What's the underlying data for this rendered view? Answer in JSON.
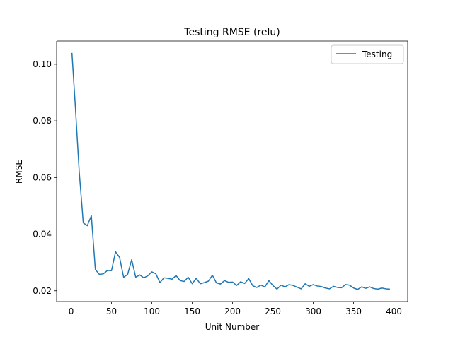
{
  "chart_data": {
    "type": "line",
    "title": "Testing RMSE (relu)",
    "xlabel": "Unit Number",
    "ylabel": "RMSE",
    "xlim": [
      -18,
      417
    ],
    "ylim": [
      0.0162,
      0.1082
    ],
    "xticks": [
      0,
      50,
      100,
      150,
      200,
      250,
      300,
      350,
      400
    ],
    "yticks": [
      0.02,
      0.04,
      0.06,
      0.08,
      0.1
    ],
    "ytick_labels": [
      "0.02",
      "0.04",
      "0.06",
      "0.08",
      "0.10"
    ],
    "grid": false,
    "legend_position": "top-right",
    "series": [
      {
        "name": "Testing",
        "color": "#1f77b4",
        "x": [
          1,
          5,
          10,
          15,
          20,
          25,
          30,
          35,
          40,
          45,
          50,
          55,
          60,
          65,
          70,
          75,
          80,
          85,
          90,
          95,
          100,
          105,
          110,
          115,
          120,
          125,
          130,
          135,
          140,
          145,
          150,
          155,
          160,
          165,
          170,
          175,
          180,
          185,
          190,
          195,
          200,
          205,
          210,
          215,
          220,
          225,
          230,
          235,
          240,
          245,
          250,
          255,
          260,
          265,
          270,
          275,
          280,
          285,
          290,
          295,
          300,
          305,
          310,
          315,
          320,
          325,
          330,
          335,
          340,
          345,
          350,
          355,
          360,
          365,
          370,
          375,
          380,
          385,
          390,
          395
        ],
        "y": [
          0.104,
          0.086,
          0.062,
          0.044,
          0.043,
          0.0465,
          0.0275,
          0.0258,
          0.026,
          0.0272,
          0.0271,
          0.0338,
          0.0318,
          0.0248,
          0.0258,
          0.031,
          0.0248,
          0.0256,
          0.0246,
          0.0253,
          0.0267,
          0.026,
          0.0229,
          0.0246,
          0.0244,
          0.0241,
          0.0254,
          0.0236,
          0.0233,
          0.0248,
          0.0225,
          0.0244,
          0.0225,
          0.0229,
          0.0234,
          0.0255,
          0.0228,
          0.0224,
          0.0236,
          0.023,
          0.0231,
          0.0219,
          0.0232,
          0.0226,
          0.0243,
          0.0218,
          0.0212,
          0.022,
          0.0214,
          0.0236,
          0.0219,
          0.0206,
          0.022,
          0.0214,
          0.0222,
          0.0219,
          0.0213,
          0.0207,
          0.0225,
          0.0216,
          0.0222,
          0.0217,
          0.0215,
          0.021,
          0.0207,
          0.0216,
          0.0212,
          0.0211,
          0.0222,
          0.022,
          0.021,
          0.0205,
          0.0214,
          0.0209,
          0.0214,
          0.0208,
          0.0206,
          0.021,
          0.0207,
          0.0206
        ]
      }
    ]
  }
}
